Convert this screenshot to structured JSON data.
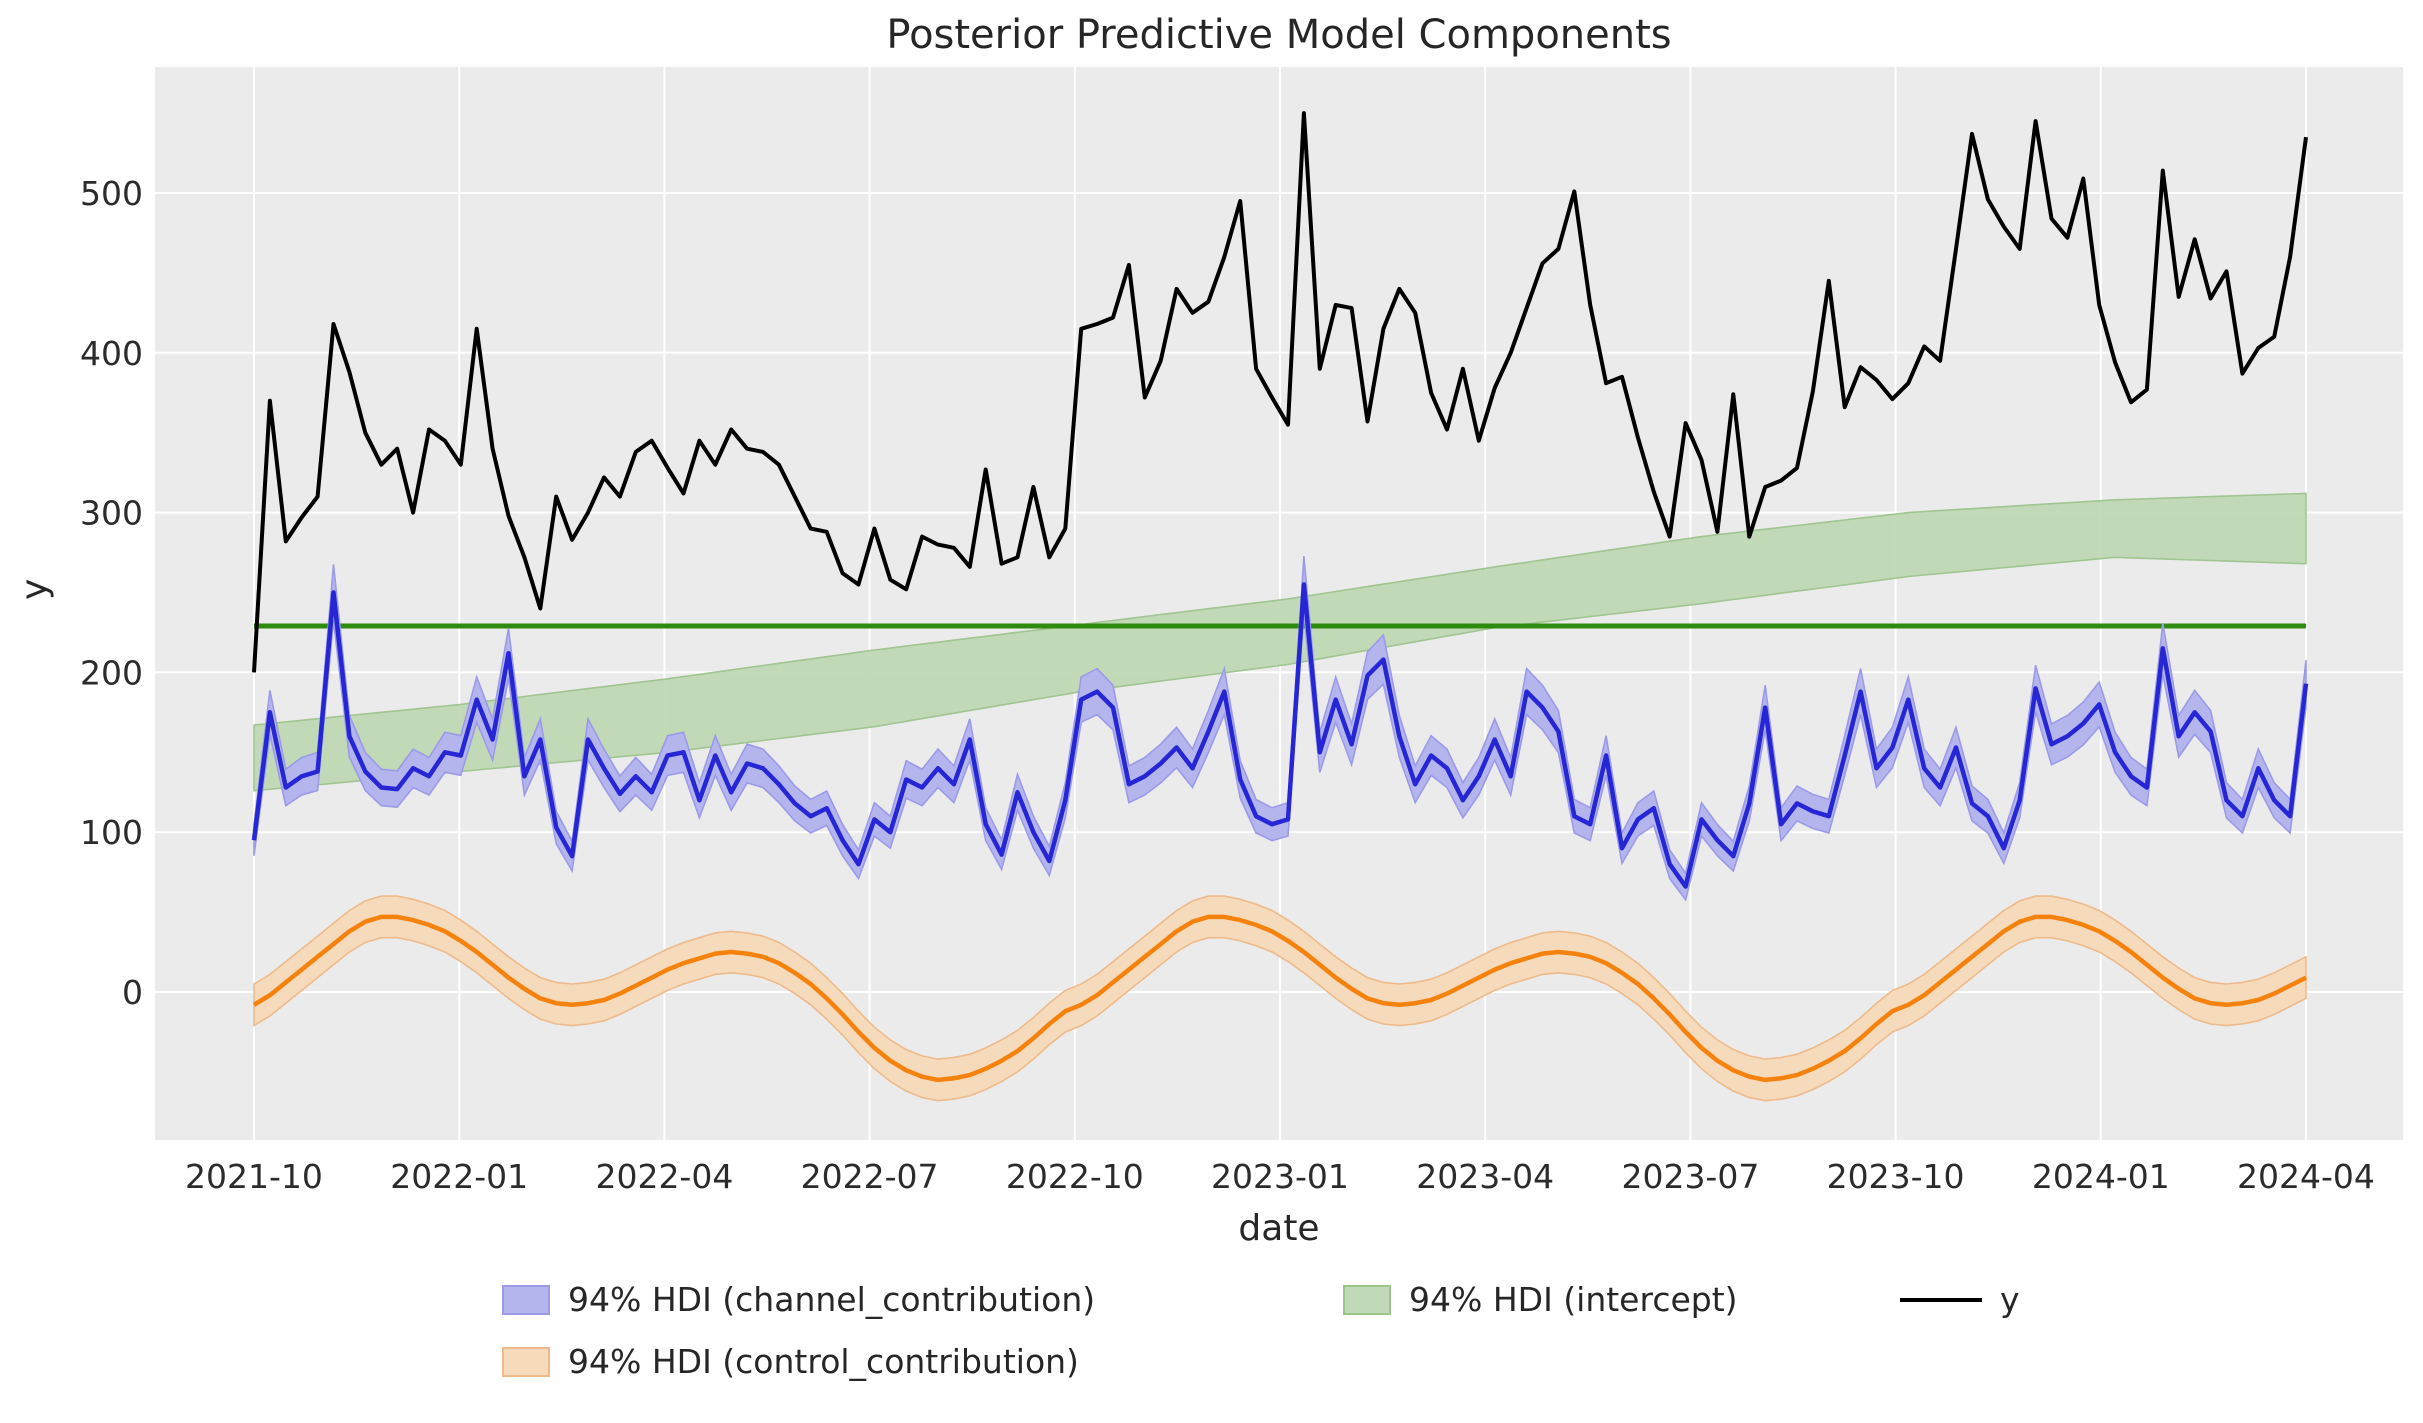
{
  "colors": {
    "figure_background": "#ffffff",
    "axes_background": "#ebebeb",
    "grid": "#ffffff",
    "text": "#262626",
    "tick_text": "#2b2b2b",
    "y_line": "#000000",
    "channel_line": "#2626d4",
    "channel_band_fill": "#b5b5ee",
    "channel_band_edge": "#9a9ae8",
    "control_line": "#f5820d",
    "control_band_fill": "#f6dabc",
    "control_band_edge": "#eeba8a",
    "intercept_band_fill": "#c0d9b6",
    "intercept_band_edge": "#9cc48c",
    "intercept_line": "#2e8b0e"
  },
  "legend": {
    "items": [
      {
        "label": "94% HDI (channel_contribution)",
        "marker": "patch",
        "color_key": "channel"
      },
      {
        "label": "94% HDI (intercept)",
        "marker": "patch",
        "color_key": "intercept"
      },
      {
        "label": "y",
        "marker": "line",
        "color_key": "y"
      },
      {
        "label": "94% HDI (control_contribution)",
        "marker": "patch",
        "color_key": "control"
      }
    ]
  },
  "chart_data": {
    "type": "line",
    "title": "Posterior Predictive Model Components",
    "xlabel": "date",
    "ylabel": "y",
    "legend_position": "bottom-center",
    "grid": true,
    "x_tick_labels": [
      "2021-10",
      "2022-01",
      "2022-04",
      "2022-07",
      "2022-10",
      "2023-01",
      "2023-04",
      "2023-07",
      "2023-10",
      "2024-01",
      "2024-04"
    ],
    "y_tick_values": [
      0,
      100,
      200,
      300,
      400,
      500
    ],
    "ylim": [
      -97,
      579
    ],
    "x_start": "2021-10-03",
    "x_end": "2024-04-01",
    "frequency": "weekly",
    "n_points": 130,
    "series": [
      {
        "name": "y",
        "kind": "line",
        "values": [
          200,
          370,
          282,
          297,
          310,
          418,
          388,
          350,
          330,
          340,
          300,
          352,
          345,
          330,
          415,
          340,
          298,
          272,
          240,
          310,
          283,
          300,
          322,
          310,
          338,
          345,
          328,
          312,
          345,
          330,
          352,
          340,
          338,
          330,
          310,
          290,
          288,
          262,
          255,
          290,
          258,
          252,
          285,
          280,
          278,
          266,
          327,
          268,
          272,
          316,
          272,
          290,
          415,
          418,
          422,
          455,
          372,
          395,
          440,
          425,
          432,
          460,
          495,
          390,
          372,
          355,
          550,
          390,
          430,
          428,
          357,
          415,
          440,
          425,
          375,
          352,
          390,
          345,
          378,
          400,
          428,
          456,
          465,
          501,
          430,
          381,
          385,
          347,
          313,
          285,
          356,
          333,
          288,
          374,
          285,
          316,
          320,
          328,
          376,
          445,
          366,
          391,
          383,
          371,
          381,
          404,
          395,
          465,
          537,
          496,
          479,
          465,
          545,
          484,
          472,
          509,
          430,
          394,
          369,
          377,
          514,
          435,
          471,
          434,
          451,
          387,
          403,
          410,
          460,
          535
        ]
      },
      {
        "name": "channel_contribution",
        "kind": "line_with_hdi_band",
        "hdi_label": "94% HDI (channel_contribution)",
        "band_halfwidth_base": 5,
        "band_halfwidth_frac": 0.05,
        "values": [
          95,
          175,
          128,
          135,
          138,
          250,
          160,
          138,
          128,
          127,
          140,
          135,
          150,
          148,
          183,
          158,
          212,
          135,
          158,
          103,
          85,
          158,
          140,
          124,
          135,
          125,
          148,
          150,
          120,
          148,
          125,
          143,
          140,
          130,
          118,
          110,
          115,
          95,
          80,
          108,
          100,
          133,
          128,
          140,
          130,
          158,
          105,
          86,
          125,
          100,
          82,
          120,
          183,
          188,
          178,
          130,
          135,
          143,
          153,
          140,
          163,
          188,
          133,
          110,
          105,
          108,
          255,
          150,
          183,
          155,
          198,
          208,
          160,
          130,
          148,
          140,
          120,
          135,
          158,
          135,
          188,
          178,
          163,
          110,
          105,
          148,
          90,
          108,
          115,
          80,
          66,
          108,
          95,
          85,
          118,
          178,
          105,
          118,
          113,
          110,
          148,
          188,
          140,
          153,
          183,
          140,
          128,
          153,
          118,
          110,
          90,
          120,
          190,
          155,
          160,
          168,
          180,
          150,
          135,
          128,
          215,
          160,
          175,
          163,
          120,
          110,
          140,
          120,
          110,
          193
        ]
      },
      {
        "name": "control_contribution",
        "kind": "line_with_hdi_band",
        "hdi_label": "94% HDI (control_contribution)",
        "band_halfwidth": 13,
        "values": [
          -8,
          -2,
          6,
          14,
          22,
          30,
          38,
          44,
          47,
          47,
          45,
          42,
          38,
          32,
          25,
          17,
          9,
          2,
          -4,
          -7,
          -8,
          -7,
          -5,
          -1,
          4,
          9,
          14,
          18,
          21,
          24,
          25,
          24,
          22,
          18,
          12,
          5,
          -4,
          -14,
          -25,
          -35,
          -43,
          -49,
          -53,
          -55,
          -54,
          -52,
          -48,
          -43,
          -37,
          -29,
          -20,
          -12,
          -8,
          -2,
          6,
          14,
          22,
          30,
          38,
          44,
          47,
          47,
          45,
          42,
          38,
          32,
          25,
          17,
          9,
          2,
          -4,
          -7,
          -8,
          -7,
          -5,
          -1,
          4,
          9,
          14,
          18,
          21,
          24,
          25,
          24,
          22,
          18,
          12,
          5,
          -4,
          -14,
          -25,
          -35,
          -43,
          -49,
          -53,
          -55,
          -54,
          -52,
          -48,
          -43,
          -37,
          -29,
          -20,
          -12,
          -8,
          -2,
          6,
          14,
          22,
          30,
          38,
          44,
          47,
          47,
          45,
          42,
          38,
          32,
          25,
          17,
          9,
          2,
          -4,
          -7,
          -8,
          -7,
          -5,
          -1,
          4,
          9
        ]
      },
      {
        "name": "intercept",
        "kind": "hdi_band_with_flat_line",
        "hdi_label": "94% HDI (intercept)",
        "flat_line_value": 229,
        "anchors_index": [
          0,
          13,
          26,
          39,
          52,
          65,
          78,
          91,
          104,
          117,
          129
        ],
        "lower": [
          126,
          138,
          150,
          166,
          188,
          205,
          228,
          243,
          260,
          272,
          268
        ],
        "upper": [
          167,
          180,
          196,
          214,
          230,
          246,
          266,
          285,
          300,
          308,
          312
        ]
      }
    ]
  }
}
